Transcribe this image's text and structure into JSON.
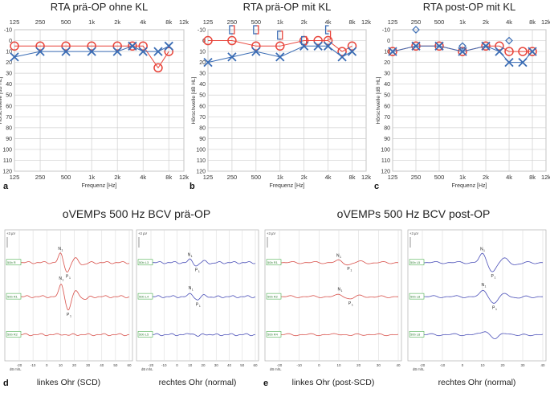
{
  "figure": {
    "panel_letters": [
      "a",
      "b",
      "c",
      "d",
      "e"
    ]
  },
  "audiograms": {
    "freq_ticks": [
      "125",
      "250",
      "500",
      "1k",
      "2k",
      "4k",
      "8k",
      "12k"
    ],
    "level_ticks": [
      "-10",
      "0",
      "10",
      "20",
      "30",
      "40",
      "50",
      "60",
      "70",
      "80",
      "90",
      "100",
      "110",
      "120"
    ],
    "ylabel": "Hörschwelle [dB HL]",
    "xlabel": "Frequenz [Hz]"
  },
  "chart_data": [
    {
      "type": "line",
      "title": "RTA prä-OP ohne KL",
      "xlabel": "Frequenz [Hz]",
      "ylabel": "Hörschwelle [dB HL]",
      "xscale": "log",
      "xlim": [
        125,
        12000
      ],
      "ylim": [
        -10,
        120
      ],
      "y_inverted": true,
      "grid": true,
      "series": [
        {
          "color": "#e8443a",
          "marker": "circle",
          "x": [
            125,
            250,
            500,
            1000,
            2000,
            3000,
            4000,
            6000,
            8000
          ],
          "y": [
            5,
            5,
            5,
            5,
            5,
            5,
            5,
            25,
            10
          ]
        },
        {
          "color": "#3a6cb4",
          "marker": "cross",
          "x": [
            125,
            250,
            500,
            1000,
            2000,
            3000,
            4000,
            6000,
            8000
          ],
          "y": [
            15,
            10,
            10,
            10,
            10,
            5,
            10,
            10,
            5
          ]
        }
      ]
    },
    {
      "type": "line",
      "title": "RTA prä-OP mit KL",
      "xlabel": "Frequenz [Hz]",
      "ylabel": "Hörschwelle [dB HL]",
      "xscale": "log",
      "xlim": [
        125,
        12000
      ],
      "ylim": [
        -10,
        120
      ],
      "y_inverted": true,
      "grid": true,
      "series": [
        {
          "color": "#e8443a",
          "marker": "circle",
          "x": [
            125,
            250,
            500,
            1000,
            2000,
            3000,
            4000,
            6000,
            8000
          ],
          "y": [
            0,
            0,
            5,
            5,
            0,
            0,
            0,
            10,
            5
          ]
        },
        {
          "color": "#3a6cb4",
          "marker": "cross",
          "x": [
            125,
            250,
            500,
            1000,
            2000,
            3000,
            4000,
            6000,
            8000
          ],
          "y": [
            20,
            15,
            10,
            15,
            5,
            5,
            5,
            15,
            10
          ]
        },
        {
          "color": "#e8443a",
          "marker": "bracket-right",
          "x": [
            250,
            500,
            1000,
            2000,
            4000
          ],
          "y": [
            -10,
            -10,
            -5,
            0,
            -5
          ]
        },
        {
          "color": "#3a6cb4",
          "marker": "bracket-left",
          "x": [
            250,
            500,
            1000,
            2000,
            4000
          ],
          "y": [
            -10,
            -10,
            -5,
            0,
            -10
          ]
        }
      ]
    },
    {
      "type": "line",
      "title": "RTA post-OP mit KL",
      "xlabel": "Frequenz [Hz]",
      "ylabel": "Hörschwelle [dB HL]",
      "xscale": "log",
      "xlim": [
        125,
        12000
      ],
      "ylim": [
        -10,
        120
      ],
      "y_inverted": true,
      "grid": true,
      "series": [
        {
          "color": "#e8443a",
          "marker": "circle",
          "x": [
            125,
            250,
            500,
            1000,
            2000,
            3000,
            4000,
            6000,
            8000
          ],
          "y": [
            10,
            5,
            5,
            10,
            5,
            5,
            10,
            10,
            10
          ]
        },
        {
          "color": "#3a6cb4",
          "marker": "cross",
          "x": [
            125,
            250,
            500,
            1000,
            2000,
            3000,
            4000,
            6000,
            8000
          ],
          "y": [
            10,
            5,
            5,
            10,
            5,
            10,
            20,
            20,
            10
          ]
        },
        {
          "color": "#3a6cb4",
          "marker": "diamond",
          "x": [
            250,
            1000,
            4000
          ],
          "y": [
            -10,
            5,
            0
          ]
        }
      ]
    }
  ],
  "vemp": {
    "title_pre": "oVEMPs 500 Hz BCV prä-OP",
    "title_post": "oVEMPs 500 Hz BCV post-OP",
    "unit_label": "+3 µV",
    "axis_unit": "dB mhL",
    "xticks": [
      "-20",
      "-10",
      "0",
      "10",
      "20",
      "30",
      "40",
      "50",
      "60"
    ],
    "xticks_short": [
      "-20",
      "-10",
      "0",
      "10",
      "20",
      "30",
      "40"
    ],
    "peak_n": "N",
    "peak_p": "P",
    "peak_sub": "1",
    "panels": [
      {
        "caption": "linkes Ohr (SCD)",
        "color": "#d8504a",
        "tags": [
          "50b R",
          "50b R1",
          "50b R2"
        ],
        "amp": [
          2.2,
          3.2,
          0.15
        ]
      },
      {
        "caption": "rechtes Ohr (normal)",
        "color": "#4a4fb8",
        "tags": [
          "50b L3",
          "50b L4",
          "50b L5"
        ],
        "amp": [
          0.7,
          0.8,
          0.4
        ]
      },
      {
        "caption": "linkes Ohr (post-SCD)",
        "color": "#d8504a",
        "tags": [
          "50b R1",
          "50b R2",
          "50b R4"
        ],
        "amp": [
          0.45,
          0.55,
          0.2
        ]
      },
      {
        "caption": "rechtes Ohr (normal)",
        "color": "#4a4fb8",
        "tags": [
          "50b L5",
          "50b L8",
          "50b L8"
        ],
        "amp": [
          2.1,
          1.6,
          1.0
        ]
      }
    ]
  }
}
